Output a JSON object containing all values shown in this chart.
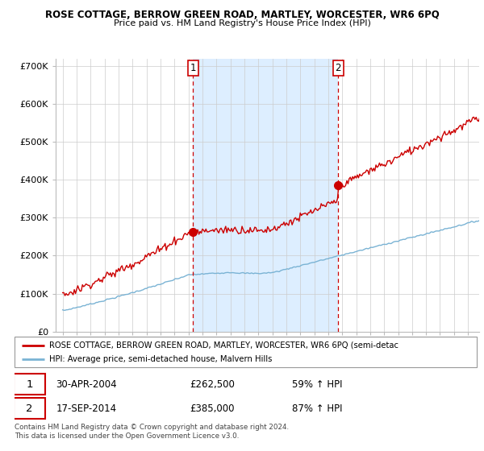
{
  "title": "ROSE COTTAGE, BERROW GREEN ROAD, MARTLEY, WORCESTER, WR6 6PQ",
  "subtitle": "Price paid vs. HM Land Registry's House Price Index (HPI)",
  "legend_line1": "ROSE COTTAGE, BERROW GREEN ROAD, MARTLEY, WORCESTER, WR6 6PQ (semi-detac",
  "legend_line2": "HPI: Average price, semi-detached house, Malvern Hills",
  "transaction1_date": "30-APR-2004",
  "transaction1_price": "£262,500",
  "transaction1_hpi": "59% ↑ HPI",
  "transaction2_date": "17-SEP-2014",
  "transaction2_price": "£385,000",
  "transaction2_hpi": "87% ↑ HPI",
  "footer": "Contains HM Land Registry data © Crown copyright and database right 2024.\nThis data is licensed under the Open Government Licence v3.0.",
  "hpi_color": "#7ab3d4",
  "price_color": "#cc0000",
  "shade_color": "#ddeeff",
  "marker1_x": 2004.33,
  "marker2_x": 2014.72,
  "marker1_y": 262500,
  "marker2_y": 385000,
  "ylim": [
    0,
    720000
  ],
  "xlim_start": 1994.5,
  "xlim_end": 2024.8,
  "background_color": "#ffffff",
  "grid_color": "#cccccc"
}
